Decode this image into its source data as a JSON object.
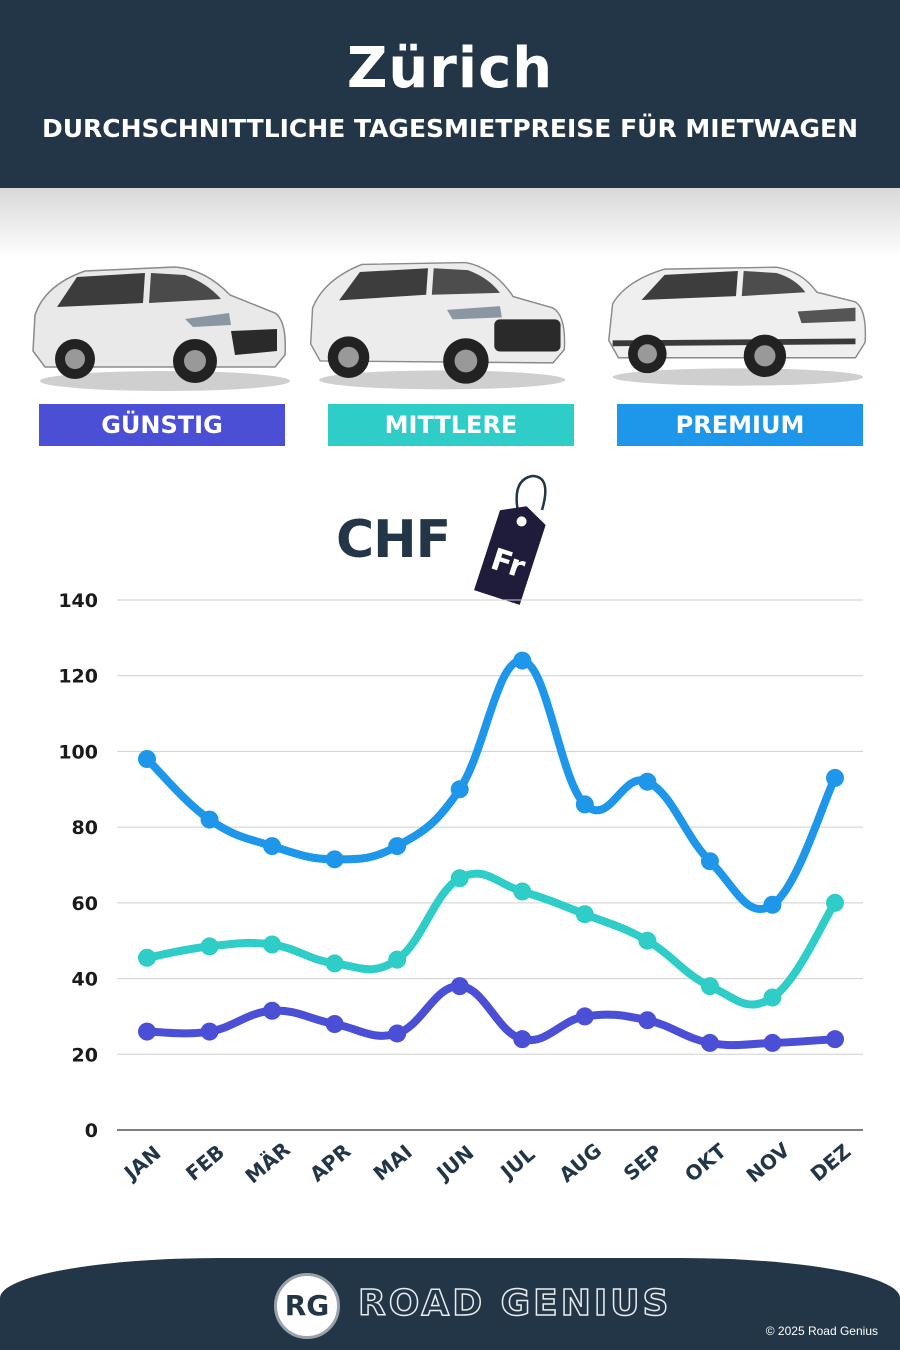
{
  "header": {
    "title": "Zürich",
    "subtitle": "DURCHSCHNITTLICHE TAGESMIETPREISE FÜR MIETWAGEN"
  },
  "categories_badges": [
    {
      "label": "GÜNSTIG",
      "color": "#4a4fd6",
      "icon": "hatchback-car-image"
    },
    {
      "label": "MITTLERE",
      "color": "#2fcdc8",
      "icon": "suv-car-image"
    },
    {
      "label": "PREMIUM",
      "color": "#1e96ea",
      "icon": "luxury-suv-image"
    }
  ],
  "currency": {
    "label": "CHF",
    "tag_text": "Fr"
  },
  "chart_data": {
    "type": "line",
    "categories": [
      "JAN",
      "FEB",
      "MÄR",
      "APR",
      "MAI",
      "JUN",
      "JUL",
      "AUG",
      "SEP",
      "OKT",
      "NOV",
      "DEZ"
    ],
    "series": [
      {
        "name": "PREMIUM",
        "color": "#1e96ea",
        "values": [
          98,
          82,
          75,
          71.5,
          75,
          90,
          124,
          86,
          92,
          71,
          59.5,
          93
        ]
      },
      {
        "name": "MITTLERE",
        "color": "#2fcdc8",
        "values": [
          45.5,
          48.5,
          49,
          44,
          45,
          66.5,
          63,
          57,
          50,
          38,
          35,
          60
        ]
      },
      {
        "name": "GÜNSTIG",
        "color": "#4a4fd6",
        "values": [
          26,
          26,
          31.5,
          28,
          25.5,
          38,
          24,
          30,
          29,
          23,
          23,
          24
        ]
      }
    ],
    "ylim": [
      0,
      140
    ],
    "yticks": [
      0,
      20,
      40,
      60,
      80,
      100,
      120,
      140
    ],
    "grid": true
  },
  "footer": {
    "logo_letters": "RG",
    "brand": "ROAD GENIUS",
    "copyright": "© 2025 Road Genius"
  }
}
